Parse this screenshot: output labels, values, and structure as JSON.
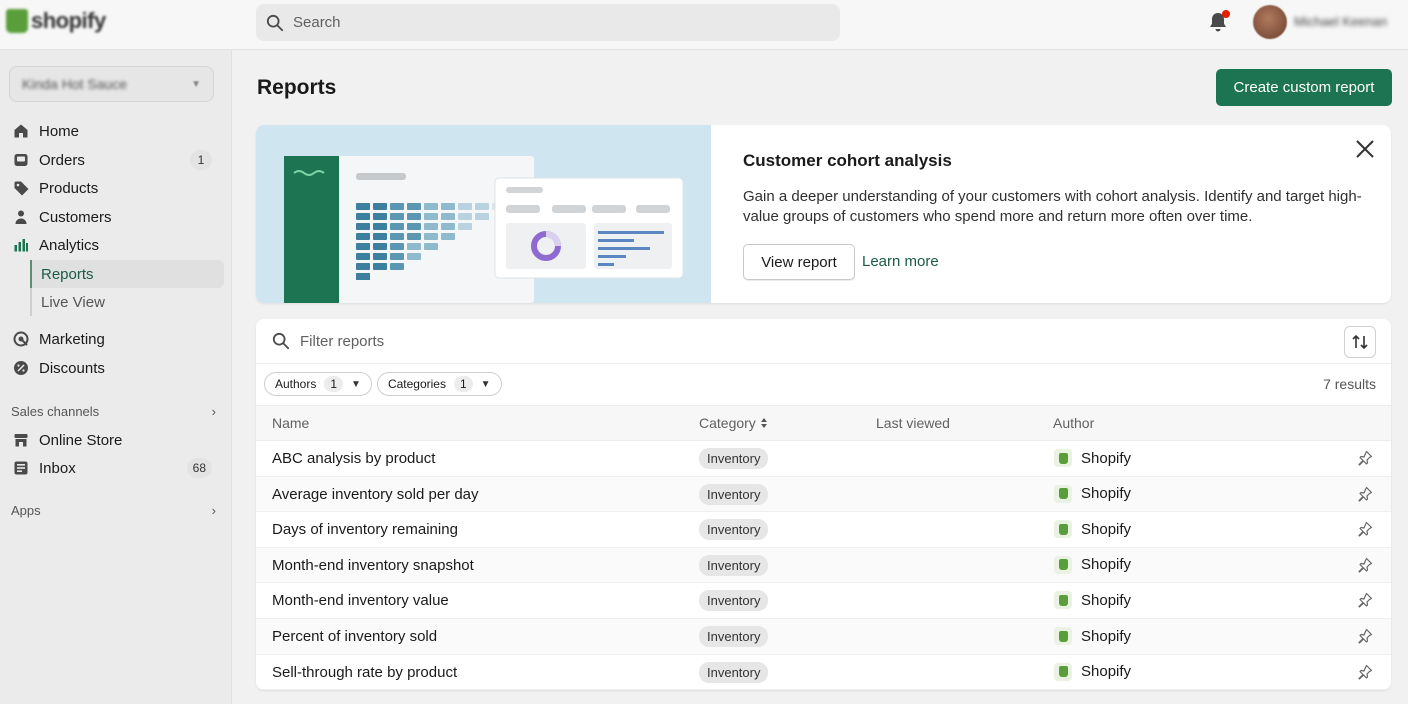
{
  "topbar": {
    "logo_text": "shopify",
    "search_placeholder": "Search",
    "user_name": "Michael Keenan"
  },
  "sidebar": {
    "store_name": "Kinda Hot Sauce",
    "items": [
      {
        "label": "Home",
        "icon": "home-icon"
      },
      {
        "label": "Orders",
        "icon": "orders-icon",
        "badge": "1"
      },
      {
        "label": "Products",
        "icon": "tag-icon"
      },
      {
        "label": "Customers",
        "icon": "person-icon"
      },
      {
        "label": "Analytics",
        "icon": "bar-chart-icon"
      }
    ],
    "sub_items": [
      {
        "label": "Reports",
        "active": true
      },
      {
        "label": "Live View",
        "active": false
      }
    ],
    "items2": [
      {
        "label": "Marketing",
        "icon": "target-icon"
      },
      {
        "label": "Discounts",
        "icon": "discount-icon"
      }
    ],
    "sales_channels_label": "Sales channels",
    "channels": [
      {
        "label": "Online Store",
        "icon": "store-icon"
      },
      {
        "label": "Inbox",
        "icon": "inbox-icon",
        "badge": "68"
      }
    ],
    "apps_label": "Apps"
  },
  "main": {
    "title": "Reports",
    "create_button": "Create custom report"
  },
  "banner": {
    "title": "Customer cohort analysis",
    "description": "Gain a deeper understanding of your customers with cohort analysis. Identify and target high-value groups of customers who spend more and return more often over time.",
    "view_button": "View report",
    "learn_more": "Learn more"
  },
  "reports": {
    "filter_placeholder": "Filter reports",
    "chips": [
      {
        "label": "Authors",
        "count": "1"
      },
      {
        "label": "Categories",
        "count": "1"
      }
    ],
    "results": "7 results",
    "columns": [
      "Name",
      "Category",
      "Last viewed",
      "Author"
    ],
    "rows": [
      {
        "name": "ABC analysis by product",
        "category": "Inventory",
        "last_viewed": "",
        "author": "Shopify"
      },
      {
        "name": "Average inventory sold per day",
        "category": "Inventory",
        "last_viewed": "",
        "author": "Shopify"
      },
      {
        "name": "Days of inventory remaining",
        "category": "Inventory",
        "last_viewed": "",
        "author": "Shopify"
      },
      {
        "name": "Month-end inventory snapshot",
        "category": "Inventory",
        "last_viewed": "",
        "author": "Shopify"
      },
      {
        "name": "Month-end inventory value",
        "category": "Inventory",
        "last_viewed": "",
        "author": "Shopify"
      },
      {
        "name": "Percent of inventory sold",
        "category": "Inventory",
        "last_viewed": "",
        "author": "Shopify"
      },
      {
        "name": "Sell-through rate by product",
        "category": "Inventory",
        "last_viewed": "",
        "author": "Shopify"
      }
    ]
  },
  "colors": {
    "primary": "#1c7452",
    "active_nav": "#1a5c44",
    "notification": "#e51c00",
    "shopify_green": "#5a9e3b"
  }
}
